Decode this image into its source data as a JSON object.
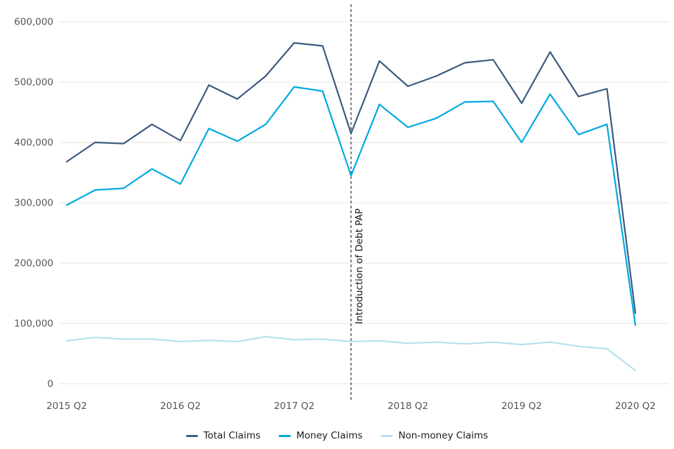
{
  "chart_data": {
    "type": "line",
    "title": "",
    "xlabel": "",
    "ylabel": "",
    "categories": [
      "2015 Q2",
      "2015 Q3",
      "2015 Q4",
      "2016 Q1",
      "2016 Q2",
      "2016 Q3",
      "2016 Q4",
      "2017 Q1",
      "2017 Q2",
      "2017 Q3",
      "2017 Q4",
      "2018 Q1",
      "2018 Q2",
      "2018 Q3",
      "2018 Q4",
      "2019 Q1",
      "2019 Q2",
      "2019 Q3",
      "2019 Q4",
      "2020 Q1",
      "2020 Q2"
    ],
    "series": [
      {
        "name": "Total Claims",
        "color": "#3d5a80",
        "values": [
          368000,
          400000,
          398000,
          430000,
          403000,
          495000,
          472000,
          510000,
          565000,
          560000,
          415000,
          535000,
          493000,
          510000,
          532000,
          537000,
          465000,
          550000,
          476000,
          489000,
          117000
        ]
      },
      {
        "name": "Money Claims",
        "color": "#00a9e0",
        "values": [
          296000,
          321000,
          324000,
          356000,
          331000,
          423000,
          402000,
          430000,
          492000,
          485000,
          345000,
          463000,
          425000,
          440000,
          467000,
          468000,
          400000,
          480000,
          413000,
          430000,
          97000
        ]
      },
      {
        "name": "Non-money Claims",
        "color": "#b6e1ef",
        "values": [
          71000,
          77000,
          74000,
          74000,
          70000,
          72000,
          70000,
          78000,
          73000,
          74000,
          70000,
          71000,
          67000,
          69000,
          66000,
          69000,
          65000,
          69000,
          62000,
          58000,
          22000
        ]
      }
    ],
    "y_ticks": [
      0,
      100000,
      200000,
      300000,
      400000,
      500000,
      600000
    ],
    "y_tick_labels": [
      "0",
      "100,000",
      "200,000",
      "300,000",
      "400,000",
      "500,000",
      "600,000"
    ],
    "ylim": [
      0,
      620000
    ],
    "x_tick_labels": [
      "2015 Q2",
      "2016 Q2",
      "2017 Q2",
      "2018 Q2",
      "2019 Q2",
      "2020 Q2"
    ],
    "x_tick_indices": [
      0,
      4,
      8,
      12,
      16,
      20
    ],
    "annotation": {
      "label": "Introduction of Debt PAP",
      "x_index": 10
    },
    "grid": "horizontal",
    "legend_position": "bottom",
    "colors": {
      "background": "#ffffff",
      "grid": "#e4e4e4",
      "tick_text": "#555555",
      "annotation_line": "#3f3f3f",
      "annotation_text": "#111111"
    }
  }
}
